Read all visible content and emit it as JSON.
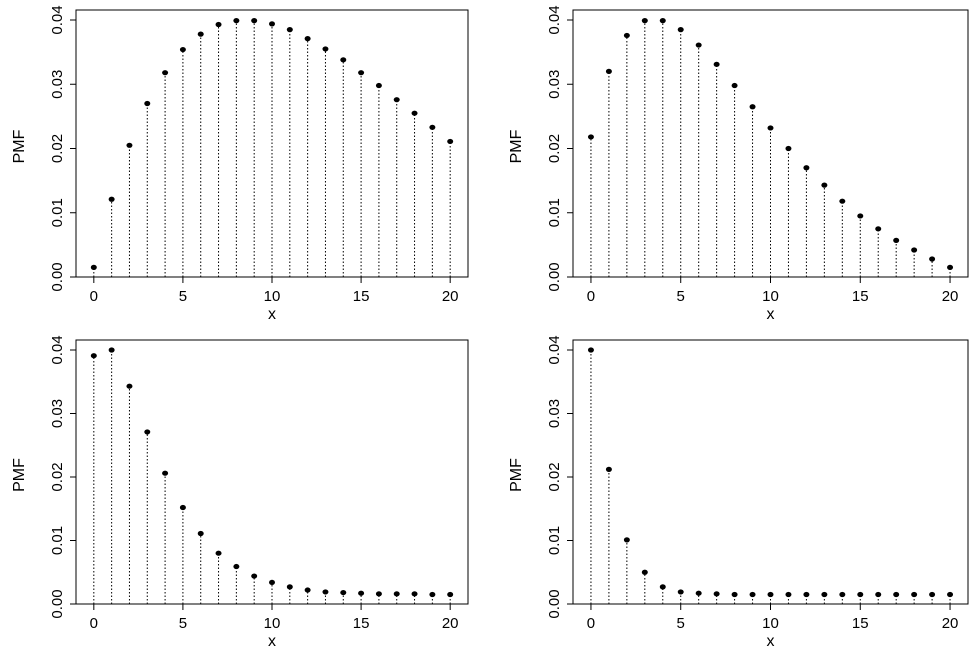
{
  "chart_data": [
    {
      "type": "scatter",
      "style": "vertical-dotted-stems-with-points",
      "xlabel": "x",
      "ylabel": "PMF",
      "xlim": [
        -1,
        21
      ],
      "ylim": [
        0,
        0.04
      ],
      "x_ticks": [
        "0",
        "5",
        "10",
        "15",
        "20"
      ],
      "y_ticks": [
        "0.00",
        "0.01",
        "0.02",
        "0.03",
        "0.04"
      ],
      "x": [
        0,
        1,
        2,
        3,
        4,
        5,
        6,
        7,
        8,
        9,
        10,
        11,
        12,
        13,
        14,
        15,
        16,
        17,
        18,
        19,
        20
      ],
      "y": [
        0.0015,
        0.0121,
        0.0205,
        0.027,
        0.0318,
        0.0354,
        0.0378,
        0.0393,
        0.0399,
        0.0399,
        0.0394,
        0.0385,
        0.0371,
        0.0355,
        0.0338,
        0.0318,
        0.0298,
        0.0276,
        0.0255,
        0.0233,
        0.0211
      ]
    },
    {
      "type": "scatter",
      "style": "vertical-dotted-stems-with-points",
      "xlabel": "x",
      "ylabel": "PMF",
      "xlim": [
        -1,
        21
      ],
      "ylim": [
        0,
        0.04
      ],
      "x_ticks": [
        "0",
        "5",
        "10",
        "15",
        "20"
      ],
      "y_ticks": [
        "0.00",
        "0.01",
        "0.02",
        "0.03",
        "0.04"
      ],
      "x": [
        0,
        1,
        2,
        3,
        4,
        5,
        6,
        7,
        8,
        9,
        10,
        11,
        12,
        13,
        14,
        15,
        16,
        17,
        18,
        19,
        20
      ],
      "y": [
        0.0218,
        0.032,
        0.0376,
        0.0399,
        0.0399,
        0.0385,
        0.0361,
        0.0331,
        0.0298,
        0.0265,
        0.0232,
        0.02,
        0.017,
        0.0143,
        0.0118,
        0.0095,
        0.0075,
        0.0057,
        0.0042,
        0.0028,
        0.0015
      ]
    },
    {
      "type": "scatter",
      "style": "vertical-dotted-stems-with-points",
      "xlabel": "x",
      "ylabel": "PMF",
      "xlim": [
        -1,
        21
      ],
      "ylim": [
        0,
        0.04
      ],
      "x_ticks": [
        "0",
        "5",
        "10",
        "15",
        "20"
      ],
      "y_ticks": [
        "0.00",
        "0.01",
        "0.02",
        "0.03",
        "0.04"
      ],
      "x": [
        0,
        1,
        2,
        3,
        4,
        5,
        6,
        7,
        8,
        9,
        10,
        11,
        12,
        13,
        14,
        15,
        16,
        17,
        18,
        19,
        20
      ],
      "y": [
        0.0391,
        0.04,
        0.0343,
        0.0271,
        0.0206,
        0.0152,
        0.0111,
        0.008,
        0.0059,
        0.0044,
        0.0034,
        0.0027,
        0.0022,
        0.0019,
        0.0018,
        0.0017,
        0.0016,
        0.0016,
        0.0016,
        0.0015,
        0.0015
      ]
    },
    {
      "type": "scatter",
      "style": "vertical-dotted-stems-with-points",
      "xlabel": "x",
      "ylabel": "PMF",
      "xlim": [
        -1,
        21
      ],
      "ylim": [
        0,
        0.04
      ],
      "x_ticks": [
        "0",
        "5",
        "10",
        "15",
        "20"
      ],
      "y_ticks": [
        "0.00",
        "0.01",
        "0.02",
        "0.03",
        "0.04"
      ],
      "x": [
        0,
        1,
        2,
        3,
        4,
        5,
        6,
        7,
        8,
        9,
        10,
        11,
        12,
        13,
        14,
        15,
        16,
        17,
        18,
        19,
        20
      ],
      "y": [
        0.04,
        0.0212,
        0.0101,
        0.005,
        0.0027,
        0.0019,
        0.0017,
        0.0016,
        0.0015,
        0.0015,
        0.0015,
        0.0015,
        0.0015,
        0.0015,
        0.0015,
        0.0015,
        0.0015,
        0.0015,
        0.0015,
        0.0015,
        0.0015
      ]
    }
  ]
}
